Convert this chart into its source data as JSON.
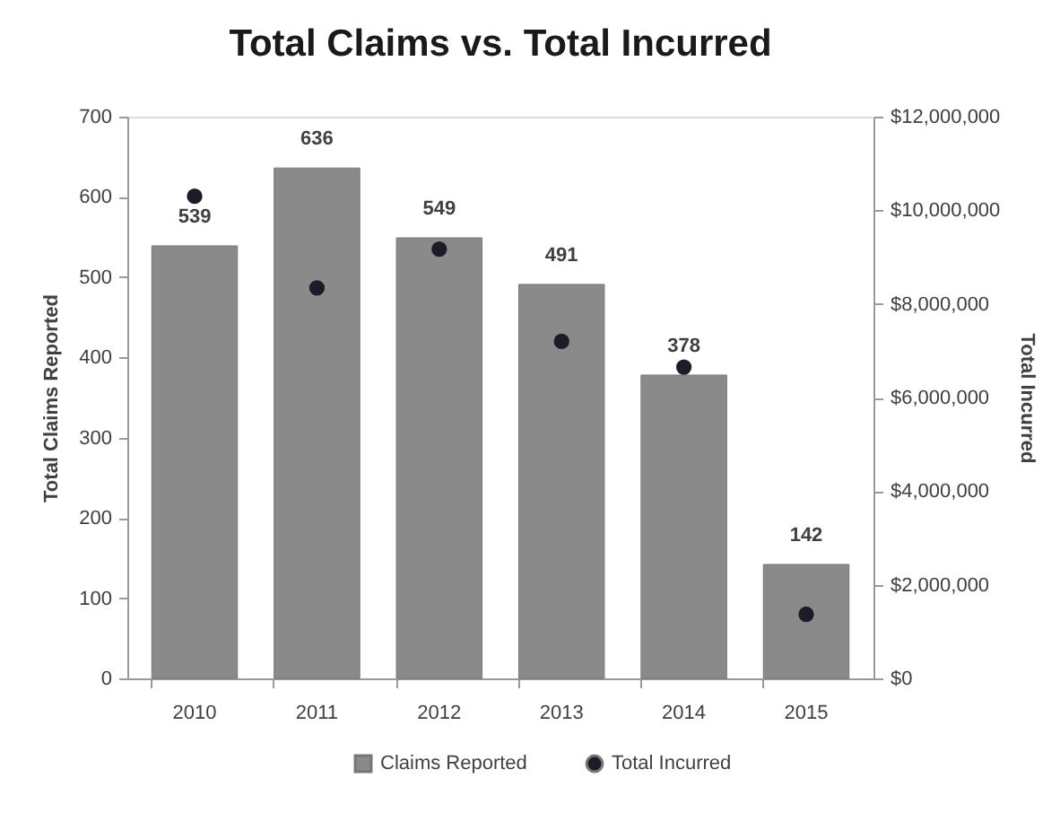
{
  "chart_data": {
    "type": "bar",
    "title": "Total Claims vs. Total Incurred",
    "categories": [
      "2010",
      "2011",
      "2012",
      "2013",
      "2014",
      "2015"
    ],
    "ylabel": "Total Claims Reported",
    "y2label": "Total Incurred",
    "ylim": [
      0,
      700
    ],
    "yticks": [
      0,
      100,
      200,
      300,
      400,
      500,
      600,
      700
    ],
    "y2lim": [
      0,
      12000000
    ],
    "y2ticks": [
      {
        "value": 0,
        "label": "$0"
      },
      {
        "value": 2000000,
        "label": "$2,000,000"
      },
      {
        "value": 4000000,
        "label": "$4,000,000"
      },
      {
        "value": 6000000,
        "label": "$6,000,000"
      },
      {
        "value": 8000000,
        "label": "$8,000,000"
      },
      {
        "value": 10000000,
        "label": "$10,000,000"
      },
      {
        "value": 12000000,
        "label": "$12,000,000"
      }
    ],
    "series": [
      {
        "name": "Claims Reported",
        "color": "#8a8a8a",
        "values": [
          539,
          636,
          549,
          491,
          378,
          142
        ],
        "value_labels": [
          "539",
          "636",
          "549",
          "491",
          "378",
          "142"
        ]
      },
      {
        "name": "Total Incurred",
        "type": "scatter",
        "axis": "y2",
        "marker": "circle",
        "color": "#1c1c28",
        "values": [
          10300000,
          8340000,
          9170000,
          7200000,
          6650000,
          1370000
        ]
      }
    ],
    "legend": "bottom",
    "grid": false
  }
}
